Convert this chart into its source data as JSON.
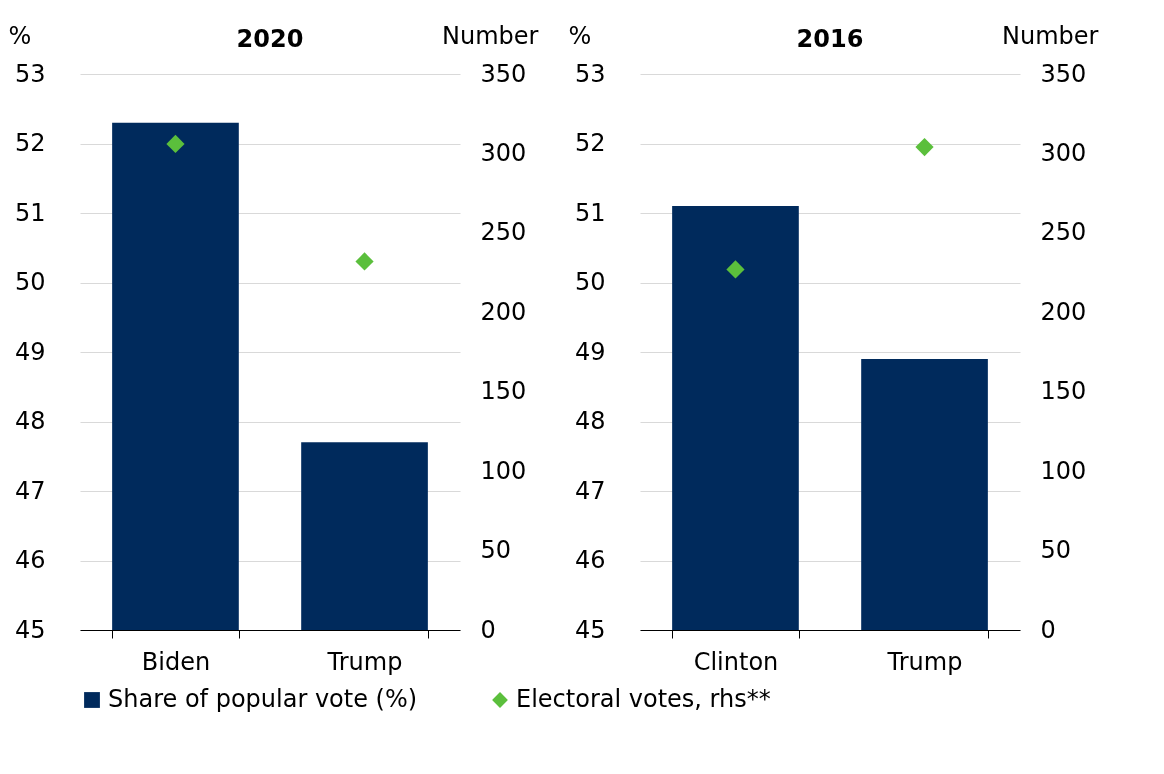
{
  "chart_data": [
    {
      "type": "bar",
      "title": "2020",
      "ylabel": "%",
      "y2label": "Number",
      "categories": [
        "Biden",
        "Trump"
      ],
      "ylim": [
        45,
        53
      ],
      "yticks": [
        45,
        46,
        47,
        48,
        49,
        50,
        51,
        52,
        53
      ],
      "y2lim": [
        0,
        350
      ],
      "y2ticks": [
        0,
        50,
        100,
        150,
        200,
        250,
        300,
        350
      ],
      "grid": "y",
      "legend": "bottom",
      "series": [
        {
          "name": "Share of popular vote (%)",
          "color": "#002a5c",
          "values": [
            52.3,
            47.7
          ]
        },
        {
          "name": "Electoral votes, rhs**",
          "type": "scatter",
          "axis": "y2",
          "marker": "diamond",
          "color": "#5bbf3c",
          "values": [
            306,
            232
          ]
        }
      ]
    },
    {
      "type": "bar",
      "title": "2016",
      "ylabel": "%",
      "y2label": "Number",
      "categories": [
        "Clinton",
        "Trump"
      ],
      "ylim": [
        45,
        53
      ],
      "yticks": [
        45,
        46,
        47,
        48,
        49,
        50,
        51,
        52,
        53
      ],
      "y2lim": [
        0,
        350
      ],
      "y2ticks": [
        0,
        50,
        100,
        150,
        200,
        250,
        300,
        350
      ],
      "grid": "y",
      "legend": "bottom",
      "series": [
        {
          "name": "Share of popular vote (%)",
          "color": "#002a5c",
          "values": [
            51.1,
            48.9
          ]
        },
        {
          "name": "Electoral votes, rhs**",
          "type": "scatter",
          "axis": "y2",
          "marker": "diamond",
          "color": "#5bbf3c",
          "values": [
            227,
            304
          ]
        }
      ]
    }
  ]
}
